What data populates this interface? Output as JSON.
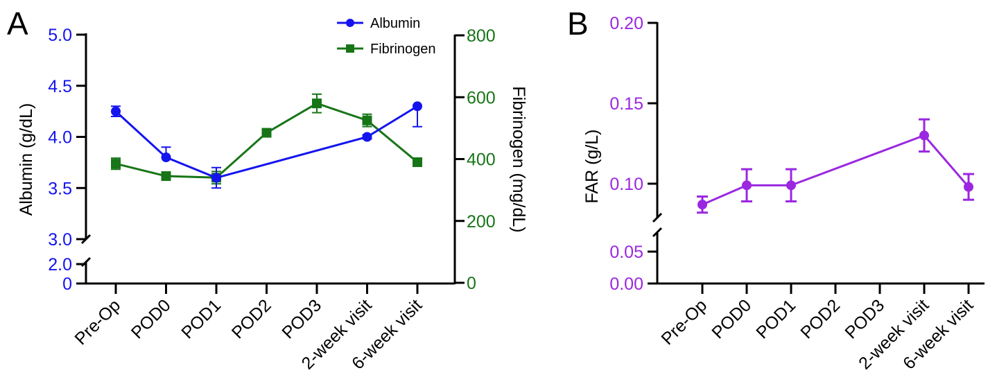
{
  "colors": {
    "albumin": "#1414ee",
    "fibrinogen": "#177517",
    "far": "#9b27e0",
    "axis": "#000000"
  },
  "panel_a": {
    "letter": "A"
  },
  "panel_b": {
    "letter": "B"
  },
  "chart_data": [
    {
      "panel": "A",
      "type": "line",
      "categories": [
        "Pre-Op",
        "POD0",
        "POD1",
        "POD2",
        "POD3",
        "2-week visit",
        "6-week visit"
      ],
      "legend_position": "top-right",
      "grid": false,
      "series": [
        {
          "name": "Albumin",
          "axis": "left",
          "marker": "circle",
          "values": [
            4.25,
            3.8,
            3.6,
            null,
            null,
            4.0,
            4.3
          ],
          "error": [
            0.05,
            0.1,
            0.1,
            null,
            null,
            0.02,
            0.2
          ],
          "error_direction": [
            "both",
            "up",
            "both",
            null,
            null,
            "both",
            "down"
          ]
        },
        {
          "name": "Fibrinogen",
          "axis": "right",
          "marker": "square",
          "values": [
            385,
            345,
            340,
            485,
            580,
            525,
            390
          ],
          "error": [
            18,
            12,
            20,
            10,
            30,
            20,
            8
          ],
          "error_direction": [
            "both",
            "both",
            "both",
            "both",
            "both",
            "both",
            "both"
          ]
        }
      ],
      "y_left": {
        "label": "Albumin (g/dL)",
        "ticks": [
          "5.0",
          "4.5",
          "4.0",
          "3.5",
          "3.0",
          "2.0",
          "0"
        ],
        "ylim": [
          3.0,
          5.0
        ],
        "broken": true
      },
      "y_right": {
        "label": "Fibrinogen (mg/dL)",
        "ticks": [
          "800",
          "600",
          "400",
          "200",
          "0"
        ],
        "ylim": [
          0,
          800
        ]
      }
    },
    {
      "panel": "B",
      "type": "line",
      "categories": [
        "Pre-Op",
        "POD0",
        "POD1",
        "POD2",
        "POD3",
        "2-week visit",
        "6-week visit"
      ],
      "grid": false,
      "series": [
        {
          "marker": "circle",
          "values": [
            0.087,
            0.099,
            0.099,
            null,
            null,
            0.13,
            0.098
          ],
          "error": [
            0.005,
            0.01,
            0.01,
            null,
            null,
            0.01,
            0.008
          ]
        }
      ],
      "y": {
        "label": "FAR (g/L)",
        "ticks": [
          "0.20",
          "0.15",
          "0.10",
          "0.05",
          "0.00"
        ],
        "ylim": [
          0.0,
          0.2
        ],
        "broken": true
      }
    }
  ]
}
